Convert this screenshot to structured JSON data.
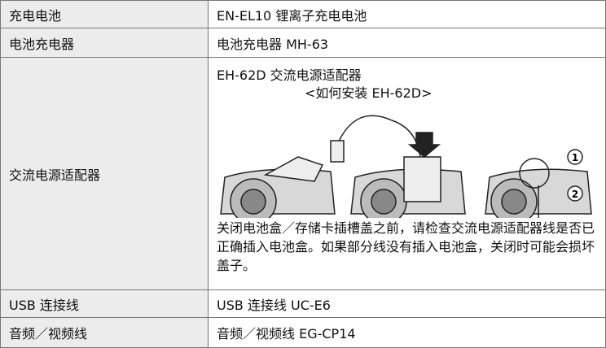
{
  "table": {
    "rows": [
      {
        "label": "充电电池",
        "content": "EN-EL10 锂离子充电电池"
      },
      {
        "label": "电池充电器",
        "content": "电池充电器 MH-63"
      },
      {
        "label": "交流电源适配器",
        "content": "EH-62D 交流电源适配器",
        "link": "<如何安装 EH-62D>",
        "callouts": [
          "1",
          "2"
        ],
        "note": "关闭电池盒／存储卡插槽盖之前，请检查交流电源适配器线是否已正确插入电池盒。如果部分线没有插入电池盒，关闭时可能会损坏盖子。"
      },
      {
        "label": "USB 连接线",
        "content": "USB 连接线 UC-E6"
      },
      {
        "label": "音频／视频线",
        "content": "音频／视频线 EG-CP14"
      }
    ]
  }
}
